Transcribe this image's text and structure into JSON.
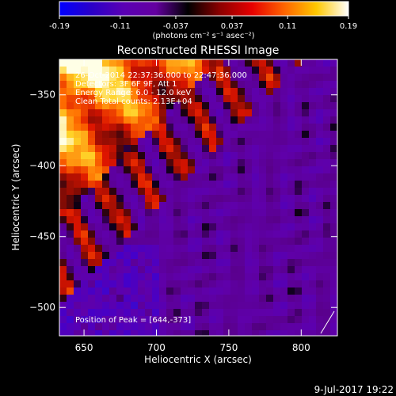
{
  "colorbar": {
    "tick_labels": [
      "-0.19",
      "-0.11",
      "-0.037",
      "0.037",
      "0.11",
      "0.19"
    ],
    "tick_values": [
      -0.19,
      -0.11,
      -0.037,
      0.037,
      0.11,
      0.19
    ],
    "range": [
      -0.19,
      0.19
    ],
    "units_label": "(photons cm⁻² s⁻¹ asec⁻²)",
    "colors": [
      "#0000ff",
      "#2a00c8",
      "#5a00b4",
      "#6400a0",
      "#000000",
      "#8c0000",
      "#e60000",
      "#ff6400",
      "#ffc800",
      "#ffffff"
    ]
  },
  "chart_data": {
    "type": "heatmap",
    "title": "Reconstructed RHESSI Image",
    "xlabel": "Heliocentric X (arcsec)",
    "ylabel": "Heliocentric Y (arcsec)",
    "xlim": [
      633,
      825
    ],
    "ylim": [
      -520,
      -325
    ],
    "x_ticks": [
      650,
      700,
      750,
      800
    ],
    "x_tick_labels": [
      "650",
      "700",
      "750",
      "800"
    ],
    "y_ticks": [
      -350,
      -400,
      -450,
      -500
    ],
    "y_tick_labels": [
      "−350",
      "−400",
      "−450",
      "−500"
    ],
    "info_lines": [
      "26-Oct-2014 22:37:36.000 to 22:47:36.000",
      "Detectors: 3F 6F 9F, Att 1",
      "Energy Range: 6.0 - 12.0 keV",
      "Clean    Total counts: 2.13E+04"
    ],
    "peak_label": "Position of Peak = [644,-373]",
    "peak_position": [
      644,
      -373
    ]
  },
  "footer": {
    "date_stamp": "9-Jul-2017 19:22"
  }
}
